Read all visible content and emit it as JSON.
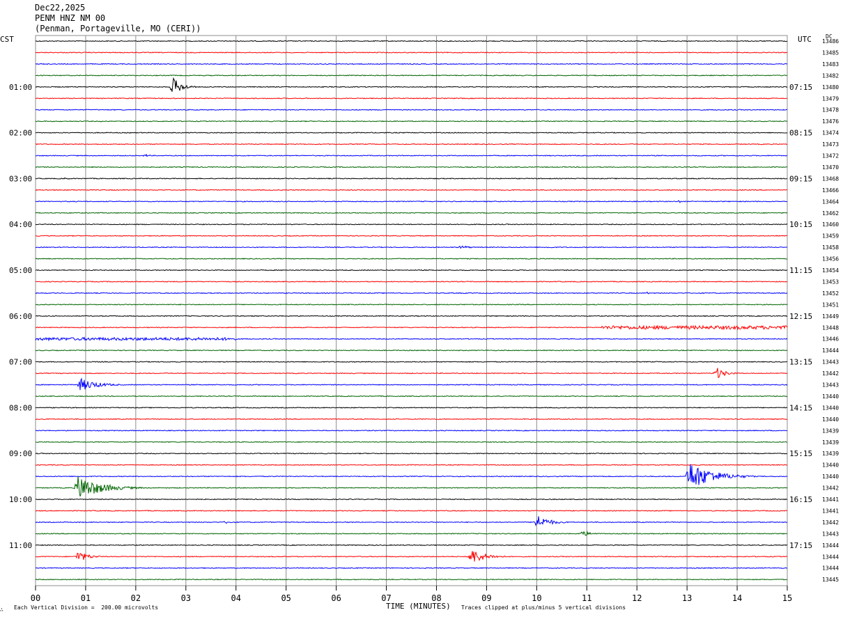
{
  "header": {
    "date": "Dec22,2025",
    "station": "PENM HNZ NM 00",
    "location": "(Penman, Portageville, MO (CERI))"
  },
  "left_axis_label": "CST",
  "right_axis_label": "UTC",
  "dc_label": "DC",
  "footer": {
    "scale_note": "Each Vertical Division =  200.00 microvolts",
    "xlabel": "TIME (MINUTES)",
    "clip_note": "Traces clipped at plus/minus 5 vertical divisions",
    "corner_mark": "∴"
  },
  "colors": {
    "trace_cycle": [
      "#000000",
      "#ff0000",
      "#0000ff",
      "#006400"
    ],
    "grid": "#8c8c8c"
  },
  "chart_data": {
    "type": "line",
    "title": "PENM HNZ NM 00",
    "xlabel": "TIME (MINUTES)",
    "xlim": [
      0,
      15
    ],
    "x_ticks": [
      "00",
      "01",
      "02",
      "03",
      "04",
      "05",
      "06",
      "07",
      "08",
      "09",
      "10",
      "11",
      "12",
      "13",
      "14",
      "15"
    ],
    "trace_count": 48,
    "minutes_per_trace": 15,
    "left_hour_labels": [
      {
        "trace": 4,
        "label": "01:00"
      },
      {
        "trace": 8,
        "label": "02:00"
      },
      {
        "trace": 12,
        "label": "03:00"
      },
      {
        "trace": 16,
        "label": "04:00"
      },
      {
        "trace": 20,
        "label": "05:00"
      },
      {
        "trace": 24,
        "label": "06:00"
      },
      {
        "trace": 28,
        "label": "07:00"
      },
      {
        "trace": 32,
        "label": "08:00"
      },
      {
        "trace": 36,
        "label": "09:00"
      },
      {
        "trace": 40,
        "label": "10:00"
      },
      {
        "trace": 44,
        "label": "11:00"
      }
    ],
    "right_hour_labels": [
      {
        "trace": 4,
        "label": "07:15"
      },
      {
        "trace": 8,
        "label": "08:15"
      },
      {
        "trace": 12,
        "label": "09:15"
      },
      {
        "trace": 16,
        "label": "10:15"
      },
      {
        "trace": 20,
        "label": "11:15"
      },
      {
        "trace": 24,
        "label": "12:15"
      },
      {
        "trace": 28,
        "label": "13:15"
      },
      {
        "trace": 32,
        "label": "14:15"
      },
      {
        "trace": 36,
        "label": "15:15"
      },
      {
        "trace": 40,
        "label": "16:15"
      },
      {
        "trace": 44,
        "label": "17:15"
      }
    ],
    "dc_offsets": [
      "13486",
      "13485",
      "13483",
      "13482",
      "13480",
      "13479",
      "13478",
      "13476",
      "13474",
      "13473",
      "13472",
      "13470",
      "13468",
      "13466",
      "13464",
      "13462",
      "13460",
      "13459",
      "13458",
      "13456",
      "13454",
      "13453",
      "13452",
      "13451",
      "13449",
      "13448",
      "13446",
      "13444",
      "13443",
      "13442",
      "13443",
      "13440",
      "13440",
      "13440",
      "13439",
      "13439",
      "13439",
      "13440",
      "13440",
      "13442",
      "13441",
      "13441",
      "13442",
      "13443",
      "13444",
      "13444",
      "13444",
      "13445"
    ],
    "events": [
      {
        "trace": 4,
        "minute": 2.75,
        "amplitude": 1.6,
        "duration": 0.5
      },
      {
        "trace": 10,
        "minute": 2.2,
        "amplitude": 0.25,
        "duration": 0.3
      },
      {
        "trace": 12,
        "minute": 0.6,
        "amplitude": 0.2,
        "duration": 0.3
      },
      {
        "trace": 14,
        "minute": 12.85,
        "amplitude": 0.3,
        "duration": 0.1
      },
      {
        "trace": 18,
        "minute": 8.5,
        "amplitude": 0.35,
        "duration": 0.5
      },
      {
        "trace": 18,
        "minute": 10.25,
        "amplitude": 0.25,
        "duration": 0.2
      },
      {
        "trace": 22,
        "minute": 12.2,
        "amplitude": 0.2,
        "duration": 0.3
      },
      {
        "trace": 29,
        "minute": 13.6,
        "amplitude": 1.0,
        "duration": 0.5
      },
      {
        "trace": 30,
        "minute": 0.9,
        "amplitude": 1.1,
        "duration": 1.0
      },
      {
        "trace": 38,
        "minute": 13.05,
        "amplitude": 2.6,
        "duration": 1.3
      },
      {
        "trace": 39,
        "minute": 0.85,
        "amplitude": 2.2,
        "duration": 1.3
      },
      {
        "trace": 42,
        "minute": 3.8,
        "amplitude": 0.25,
        "duration": 0.4
      },
      {
        "trace": 42,
        "minute": 10.0,
        "amplitude": 1.3,
        "duration": 0.7
      },
      {
        "trace": 43,
        "minute": 10.9,
        "amplitude": 0.5,
        "duration": 0.6
      },
      {
        "trace": 45,
        "minute": 0.85,
        "amplitude": 1.0,
        "duration": 0.6
      },
      {
        "trace": 45,
        "minute": 8.7,
        "amplitude": 1.4,
        "duration": 0.8
      }
    ],
    "elevated_noise": [
      {
        "trace": 25,
        "from": 11.3,
        "to": 15,
        "amplitude": 0.3
      },
      {
        "trace": 26,
        "from": 0,
        "to": 4,
        "amplitude": 0.25
      }
    ]
  }
}
